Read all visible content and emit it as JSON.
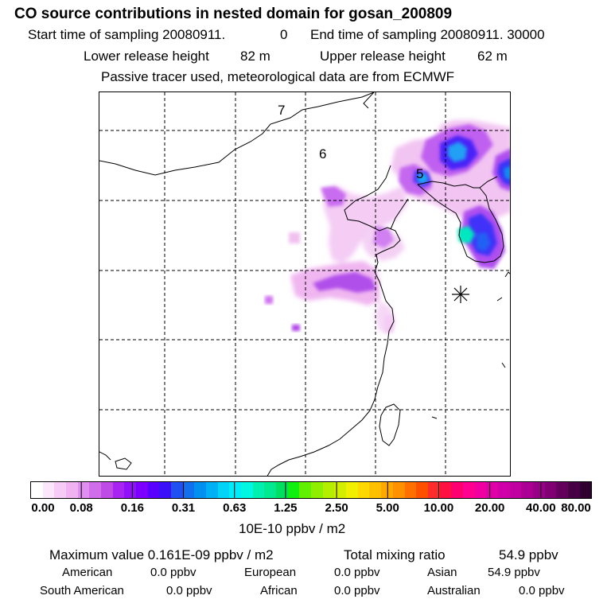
{
  "header": {
    "title": "CO  source contributions in nested domain for gosan_200809",
    "start_label": "Start time of sampling 20080911.",
    "start_value": "0",
    "end_label": "End time of sampling 20080911. 30000",
    "lower_label": "Lower release height",
    "lower_value": "82 m",
    "upper_label": "Upper release height",
    "upper_value": "62 m",
    "tracer_note": "Passive tracer used, meteorological data are from ECMWF"
  },
  "map": {
    "region_labels": [
      "7",
      "6",
      "5"
    ]
  },
  "colorbar": {
    "unit_label": "10E-10 ppbv / m2",
    "tick_labels": [
      "0.00",
      "0.08",
      "0.16",
      "0.31",
      "0.63",
      "1.25",
      "2.50",
      "5.00",
      "10.00",
      "20.00",
      "40.00",
      "80.00"
    ],
    "colors": [
      "#ffffff",
      "#fbe6fb",
      "#f6ccf6",
      "#f0b2f0",
      "#e08ff0",
      "#d06de8",
      "#c04ae6",
      "#a824f0",
      "#9010f8",
      "#7b00ff",
      "#5a00ff",
      "#3a10f8",
      "#2050f0",
      "#1070f0",
      "#0090f0",
      "#00b0f4",
      "#00d4f8",
      "#00ecf8",
      "#00f8e0",
      "#00f0b0",
      "#00e890",
      "#00e060",
      "#10f010",
      "#60f000",
      "#90ee00",
      "#b4ee00",
      "#d4ee00",
      "#f0f000",
      "#ffd800",
      "#ffc000",
      "#ffa800",
      "#ff9000",
      "#ff7000",
      "#ff5000",
      "#ff2c2c",
      "#ff1040",
      "#ff0070",
      "#ff0090",
      "#f000a0",
      "#e000a8",
      "#d000a8",
      "#c000a0",
      "#ac0094",
      "#980088",
      "#800074",
      "#64005c",
      "#480044",
      "#300030"
    ]
  },
  "stats": {
    "max_label": "Maximum value  0.161E-09 ppbv / m2",
    "total_label": "Total mixing ratio",
    "total_value": "54.9 ppbv",
    "regions": [
      {
        "name": "American",
        "value": "0.0 ppbv"
      },
      {
        "name": "European",
        "value": "0.0 ppbv"
      },
      {
        "name": "Asian",
        "value": "54.9 ppbv"
      },
      {
        "name": "South American",
        "value": "0.0 ppbv"
      },
      {
        "name": "African",
        "value": "0.0 ppbv"
      },
      {
        "name": "Australian",
        "value": "0.0 ppbv"
      }
    ]
  },
  "chart_data": {
    "type": "heatmap",
    "title": "CO  source contributions in nested domain for gosan_200809",
    "colorbar_levels": [
      0.0,
      0.08,
      0.16,
      0.31,
      0.63,
      1.25,
      2.5,
      5.0,
      10.0,
      20.0,
      40.0,
      80.0
    ],
    "units": "10E-10 ppbv / m2",
    "receptor": "gosan",
    "maximum_value": "0.161E-09 ppbv / m2",
    "total_mixing_ratio": "54.9 ppbv"
  }
}
